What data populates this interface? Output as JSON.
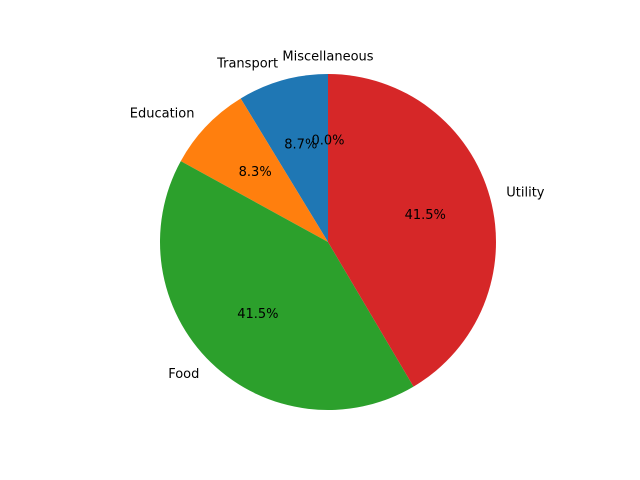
{
  "chart_data": {
    "type": "pie",
    "start_angle_deg": 90,
    "direction": "counterclockwise",
    "slices": [
      {
        "label": "Transport",
        "value": 8.7,
        "pct_label": "8.7%",
        "color": "#1f77b4"
      },
      {
        "label": "Education",
        "value": 8.3,
        "pct_label": "8.3%",
        "color": "#ff7f0e"
      },
      {
        "label": "Food",
        "value": 41.5,
        "pct_label": "41.5%",
        "color": "#2ca02c"
      },
      {
        "label": "Utility",
        "value": 41.5,
        "pct_label": "41.5%",
        "color": "#d62728"
      },
      {
        "label": "Miscellaneous",
        "value": 0.0,
        "pct_label": "0.0%",
        "color": "#9467bd"
      }
    ]
  }
}
